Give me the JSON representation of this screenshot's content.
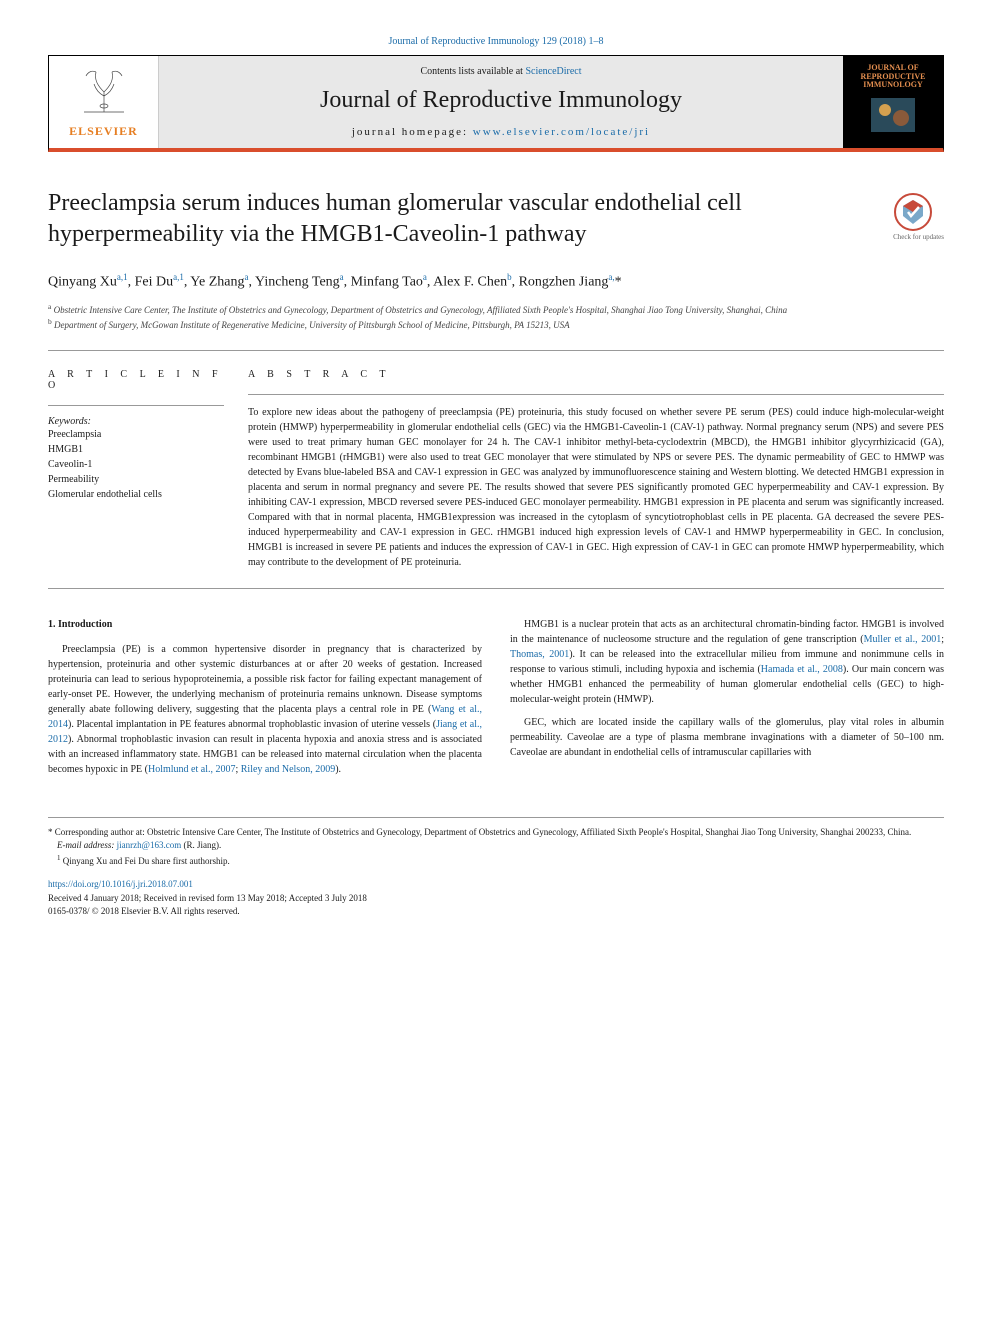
{
  "header": {
    "top_ref_pre": "",
    "top_ref_link": "Journal of Reproductive Immunology 129 (2018) 1–8",
    "contents_pre": "Contents lists available at ",
    "contents_link": "ScienceDirect",
    "journal_name": "Journal of Reproductive Immunology",
    "homepage_pre": "journal homepage: ",
    "homepage_link": "www.elsevier.com/locate/jri",
    "elsevier_label": "ELSEVIER",
    "cover_title_1": "JOURNAL OF",
    "cover_title_2": "REPRODUCTIVE",
    "cover_title_3": "IMMUNOLOGY",
    "updates_text": "Check for updates"
  },
  "article": {
    "title": "Preeclampsia serum induces human glomerular vascular endothelial cell hyperpermeability via the HMGB1-Caveolin-1 pathway",
    "authors_html": "Qinyang Xu<sup>a,1</sup>, Fei Du<sup>a,1</sup>, Ye Zhang<sup>a</sup>, Yincheng Teng<sup>a</sup>, Minfang Tao<sup>a</sup>, Alex F. Chen<sup>b</sup>, Rongzhen Jiang<sup>a,</sup>*",
    "affiliations": [
      "a Obstetric Intensive Care Center, The Institute of Obstetrics and Gynecology, Department of Obstetrics and Gynecology, Affiliated Sixth People's Hospital, Shanghai Jiao Tong University, Shanghai, China",
      "b Department of Surgery, McGowan Institute of Regenerative Medicine, University of Pittsburgh School of Medicine, Pittsburgh, PA 15213, USA"
    ]
  },
  "info": {
    "heading": "A R T I C L E  I N F O",
    "keywords_label": "Keywords:",
    "keywords": [
      "Preeclampsia",
      "HMGB1",
      "Caveolin-1",
      "Permeability",
      "Glomerular endothelial cells"
    ]
  },
  "abstract": {
    "heading": "A B S T R A C T",
    "text": "To explore new ideas about the pathogeny of preeclampsia (PE) proteinuria, this study focused on whether severe PE serum (PES) could induce high-molecular-weight protein (HMWP) hyperpermeability in glomerular endothelial cells (GEC) via the HMGB1-Caveolin-1 (CAV-1) pathway. Normal pregnancy serum (NPS) and severe PES were used to treat primary human GEC monolayer for 24 h. The CAV-1 inhibitor methyl-beta-cyclodextrin (MBCD), the HMGB1 inhibitor glycyrrhizicacid (GA), recombinant HMGB1 (rHMGB1) were also used to treat GEC monolayer that were stimulated by NPS or severe PES. The dynamic permeability of GEC to HMWP was detected by Evans blue-labeled BSA and CAV-1 expression in GEC was analyzed by immunofluorescence staining and Western blotting. We detected HMGB1 expression in placenta and serum in normal pregnancy and severe PE. The results showed that severe PES significantly promoted GEC hyperpermeability and CAV-1 expression. By inhibiting CAV-1 expression, MBCD reversed severe PES-induced GEC monolayer permeability. HMGB1 expression in PE placenta and serum was significantly increased. Compared with that in normal placenta, HMGB1expression was increased in the cytoplasm of syncytiotrophoblast cells in PE placenta. GA decreased the severe PES-induced hyperpermeability and CAV-1 expression in GEC. rHMGB1 induced high expression levels of CAV-1 and HMWP hyperpermeability in GEC. In conclusion, HMGB1 is increased in severe PE patients and induces the expression of CAV-1 in GEC. High expression of CAV-1 in GEC can promote HMWP hyperpermeability, which may contribute to the development of PE proteinuria."
  },
  "body": {
    "section_heading": "1. Introduction",
    "paragraphs": [
      "Preeclampsia (PE) is a common hypertensive disorder in pregnancy that is characterized by hypertension, proteinuria and other systemic disturbances at or after 20 weeks of gestation. Increased proteinuria can lead to serious hypoproteinemia, a possible risk factor for failing expectant management of early-onset PE. However, the underlying mechanism of proteinuria remains unknown. Disease symptoms generally abate following delivery, suggesting that the placenta plays a central role in PE (<a href='#'>Wang et al., 2014</a>). Placental implantation in PE features abnormal trophoblastic invasion of uterine vessels (<a href='#'>Jiang et al., 2012</a>). Abnormal trophoblastic invasion can result in placenta hypoxia and anoxia stress and is associated with an increased inflammatory state. HMGB1 can be released into maternal circulation when the placenta becomes hypoxic in PE (<a href='#'>Holmlund et al., 2007</a>; <a href='#'>Riley and Nelson, 2009</a>).",
      "HMGB1 is a nuclear protein that acts as an architectural chromatin-binding factor. HMGB1 is involved in the maintenance of nucleosome structure and the regulation of gene transcription (<a href='#'>Muller et al., 2001</a>; <a href='#'>Thomas, 2001</a>). It can be released into the extracellular milieu from immune and nonimmune cells in response to various stimuli, including hypoxia and ischemia (<a href='#'>Hamada et al., 2008</a>). Our main concern was whether HMGB1 enhanced the permeability of human glomerular endothelial cells (GEC) to high-molecular-weight protein (HMWP).",
      "GEC, which are located inside the capillary walls of the glomerulus, play vital roles in albumin permeability. Caveolae are a type of plasma membrane invaginations with a diameter of 50–100 nm. Caveolae are abundant in endothelial cells of intramuscular capillaries with"
    ]
  },
  "footer": {
    "corresponding": "* Corresponding author at: Obstetric Intensive Care Center, The Institute of Obstetrics and Gynecology, Department of Obstetrics and Gynecology, Affiliated Sixth People's Hospital, Shanghai Jiao Tong University, Shanghai 200233, China.",
    "email_label": "E-mail address: ",
    "email": "jianrzh@163.com",
    "email_suffix": " (R. Jiang).",
    "shared_first": "1 Qinyang Xu and Fei Du share first authorship.",
    "doi": "https://doi.org/10.1016/j.jri.2018.07.001",
    "received": "Received 4 January 2018; Received in revised form 13 May 2018; Accepted 3 July 2018",
    "copyright": "0165-0378/ © 2018 Elsevier B.V. All rights reserved."
  },
  "colors": {
    "link": "#1a6ba8",
    "rule": "#d94e2c",
    "elsevier": "#e67e22"
  }
}
